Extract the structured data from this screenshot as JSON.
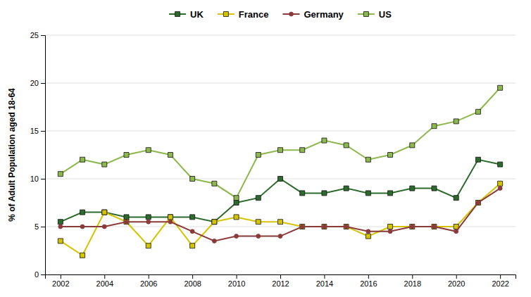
{
  "chart_data": {
    "type": "line",
    "ylabel": "% of Adult Population aged 18-64",
    "x": [
      2002,
      2003,
      2004,
      2005,
      2006,
      2007,
      2008,
      2009,
      2010,
      2011,
      2012,
      2013,
      2014,
      2015,
      2016,
      2017,
      2018,
      2019,
      2020,
      2021,
      2022
    ],
    "series": [
      {
        "name": "UK",
        "color": "#2d6a2d",
        "marker": "square",
        "values": [
          5.5,
          6.5,
          6.5,
          6.0,
          6.0,
          6.0,
          6.0,
          5.5,
          7.5,
          8.0,
          10.0,
          8.5,
          8.5,
          9.0,
          8.5,
          8.5,
          9.0,
          9.0,
          8.0,
          12.0,
          11.5
        ]
      },
      {
        "name": "France",
        "color": "#d4c400",
        "marker": "square",
        "values": [
          3.5,
          2.0,
          6.5,
          5.5,
          3.0,
          6.0,
          3.0,
          5.5,
          6.0,
          5.5,
          5.5,
          5.0,
          5.0,
          5.0,
          4.0,
          5.0,
          5.0,
          5.0,
          5.0,
          7.5,
          9.5
        ]
      },
      {
        "name": "Germany",
        "color": "#8b3a3a",
        "marker": "circle",
        "values": [
          5.0,
          5.0,
          5.0,
          5.5,
          5.5,
          5.5,
          4.5,
          3.5,
          4.0,
          4.0,
          4.0,
          5.0,
          5.0,
          5.0,
          4.5,
          4.5,
          5.0,
          5.0,
          4.5,
          7.5,
          9.0
        ]
      },
      {
        "name": "US",
        "color": "#8db84e",
        "marker": "square",
        "values": [
          10.5,
          12.0,
          11.5,
          12.5,
          13.0,
          12.5,
          10.0,
          9.5,
          8.0,
          12.5,
          13.0,
          13.0,
          14.0,
          13.5,
          12.0,
          12.5,
          13.5,
          15.5,
          16.0,
          17.0,
          19.5
        ]
      }
    ],
    "xlim": [
      2001.3,
      2022.7
    ],
    "xticks": [
      2002,
      2004,
      2006,
      2008,
      2010,
      2012,
      2014,
      2016,
      2018,
      2020,
      2022
    ],
    "ylim": [
      0,
      25
    ],
    "yticks": [
      0,
      5,
      10,
      15,
      20,
      25
    ],
    "grid": true,
    "legend": "top"
  }
}
